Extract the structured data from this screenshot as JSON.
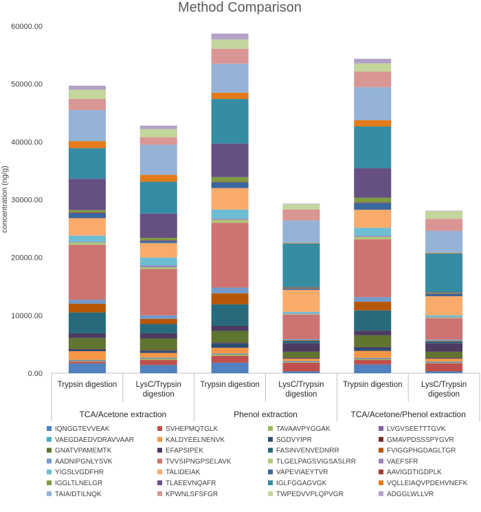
{
  "chart_data": {
    "type": "bar",
    "stacked": true,
    "title": "Method Comparison",
    "ylabel": "concentration (ng/g)",
    "xlabel": "",
    "ylim": [
      0,
      60000
    ],
    "y_ticks": [
      "0.00",
      "10000.00",
      "20000.00",
      "30000.00",
      "40000.00",
      "50000.00",
      "60000.00"
    ],
    "grid": false,
    "legend_position": "bottom",
    "groups": [
      "TCA/Acetone extraction",
      "Phenol extraction",
      "TCA/Acetone/Phenol extraction"
    ],
    "categories": [
      "Trypsin digestion",
      "LysC/Trypsin digestion",
      "Trypsin digestion",
      "LysC/Trypsin digestion",
      "Trypsin digestion",
      "LysC/Trypsin digestion"
    ],
    "series": [
      {
        "name": "IQNGGTEVVEAK",
        "color": "#4e81bd",
        "values": [
          1700,
          1400,
          1800,
          300,
          1500,
          300
        ]
      },
      {
        "name": "SVHEPMQTGLK",
        "color": "#c0504d",
        "values": [
          300,
          900,
          1200,
          1500,
          800,
          1400
        ]
      },
      {
        "name": "TAVAAVPYGGAK",
        "color": "#9bbb59",
        "values": [
          100,
          200,
          200,
          100,
          150,
          100
        ]
      },
      {
        "name": "LVGVSEETTTGVK",
        "color": "#8064a2",
        "values": [
          100,
          100,
          100,
          100,
          100,
          100
        ]
      },
      {
        "name": "VAEGDAEDVDRAVVAAR",
        "color": "#4bacc6",
        "values": [
          100,
          100,
          100,
          100,
          100,
          100
        ]
      },
      {
        "name": "KALDYEELNENVK",
        "color": "#f79646",
        "values": [
          1500,
          800,
          1000,
          400,
          1200,
          500
        ]
      },
      {
        "name": "SGDVYIPR",
        "color": "#2c4d75",
        "values": [
          300,
          400,
          800,
          100,
          600,
          100
        ]
      },
      {
        "name": "GMAVPDSSSPYGVR",
        "color": "#772c2a",
        "values": [
          100,
          100,
          100,
          100,
          100,
          100
        ]
      },
      {
        "name": "GNATVPAMEMTK",
        "color": "#5f7530",
        "values": [
          1900,
          2000,
          2000,
          1000,
          2000,
          1000
        ]
      },
      {
        "name": "EFAPSIPEK",
        "color": "#4d3b62",
        "values": [
          800,
          900,
          900,
          1500,
          800,
          1500
        ]
      },
      {
        "name": "FASINVENVEDNRR",
        "color": "#276a7c",
        "values": [
          3600,
          1600,
          3700,
          400,
          3500,
          300
        ]
      },
      {
        "name": "FVIGGPHGDAGLTGR",
        "color": "#b65708",
        "values": [
          1500,
          900,
          1900,
          100,
          1500,
          100
        ]
      },
      {
        "name": "AADNIPGNLYSVK",
        "color": "#729aca",
        "values": [
          700,
          600,
          1000,
          200,
          800,
          200
        ]
      },
      {
        "name": "TVVSIPNGPSELAVK",
        "color": "#cd7371",
        "values": [
          9500,
          8000,
          11200,
          4200,
          10000,
          3700
        ]
      },
      {
        "name": "TLGELPAGSVIGSASLRR",
        "color": "#afc97a",
        "values": [
          400,
          300,
          500,
          100,
          400,
          100
        ]
      },
      {
        "name": "VAEFSFR",
        "color": "#9983b5",
        "values": [
          100,
          300,
          200,
          100,
          200,
          100
        ]
      },
      {
        "name": "YIGSLVGDFHR",
        "color": "#6fbdd1",
        "values": [
          1100,
          1400,
          1600,
          300,
          1400,
          300
        ]
      },
      {
        "name": "TALIDEIAK",
        "color": "#f9ab6b",
        "values": [
          3000,
          2500,
          3700,
          3800,
          3100,
          3300
        ]
      },
      {
        "name": "VAPEVIAEYTVR",
        "color": "#3a679c",
        "values": [
          900,
          400,
          1000,
          200,
          1200,
          400
        ]
      },
      {
        "name": "AAVIGDTIGDPLK",
        "color": "#9e3b38",
        "values": [
          100,
          100,
          100,
          100,
          100,
          100
        ]
      },
      {
        "name": "IGGLTLNELGR",
        "color": "#7e9c40",
        "values": [
          400,
          400,
          800,
          100,
          800,
          100
        ]
      },
      {
        "name": "TLAEEVNQAFR",
        "color": "#664f83",
        "values": [
          5400,
          4200,
          5800,
          100,
          5100,
          100
        ]
      },
      {
        "name": "IGLFGGAGVGK",
        "color": "#358ca3",
        "values": [
          5300,
          5500,
          7700,
          7500,
          7200,
          6700
        ]
      },
      {
        "name": "VQLLEIAQVPDEHVNEFK",
        "color": "#e37b1a",
        "values": [
          1200,
          1200,
          1100,
          100,
          1100,
          100
        ]
      },
      {
        "name": "TAIAIDTILNQK",
        "color": "#95b3d7",
        "values": [
          5400,
          5200,
          5000,
          3900,
          5700,
          3800
        ]
      },
      {
        "name": "KPWNLSFSFGR",
        "color": "#d99694",
        "values": [
          1900,
          1300,
          2600,
          1900,
          2700,
          2100
        ]
      },
      {
        "name": "TWPEDVVPLQPVGR",
        "color": "#c3d69b",
        "values": [
          1600,
          1400,
          1600,
          900,
          1400,
          1300
        ]
      },
      {
        "name": "ADGGLWLLVR",
        "color": "#b2a1c7",
        "values": [
          700,
          600,
          1000,
          100,
          800,
          100
        ]
      }
    ]
  }
}
